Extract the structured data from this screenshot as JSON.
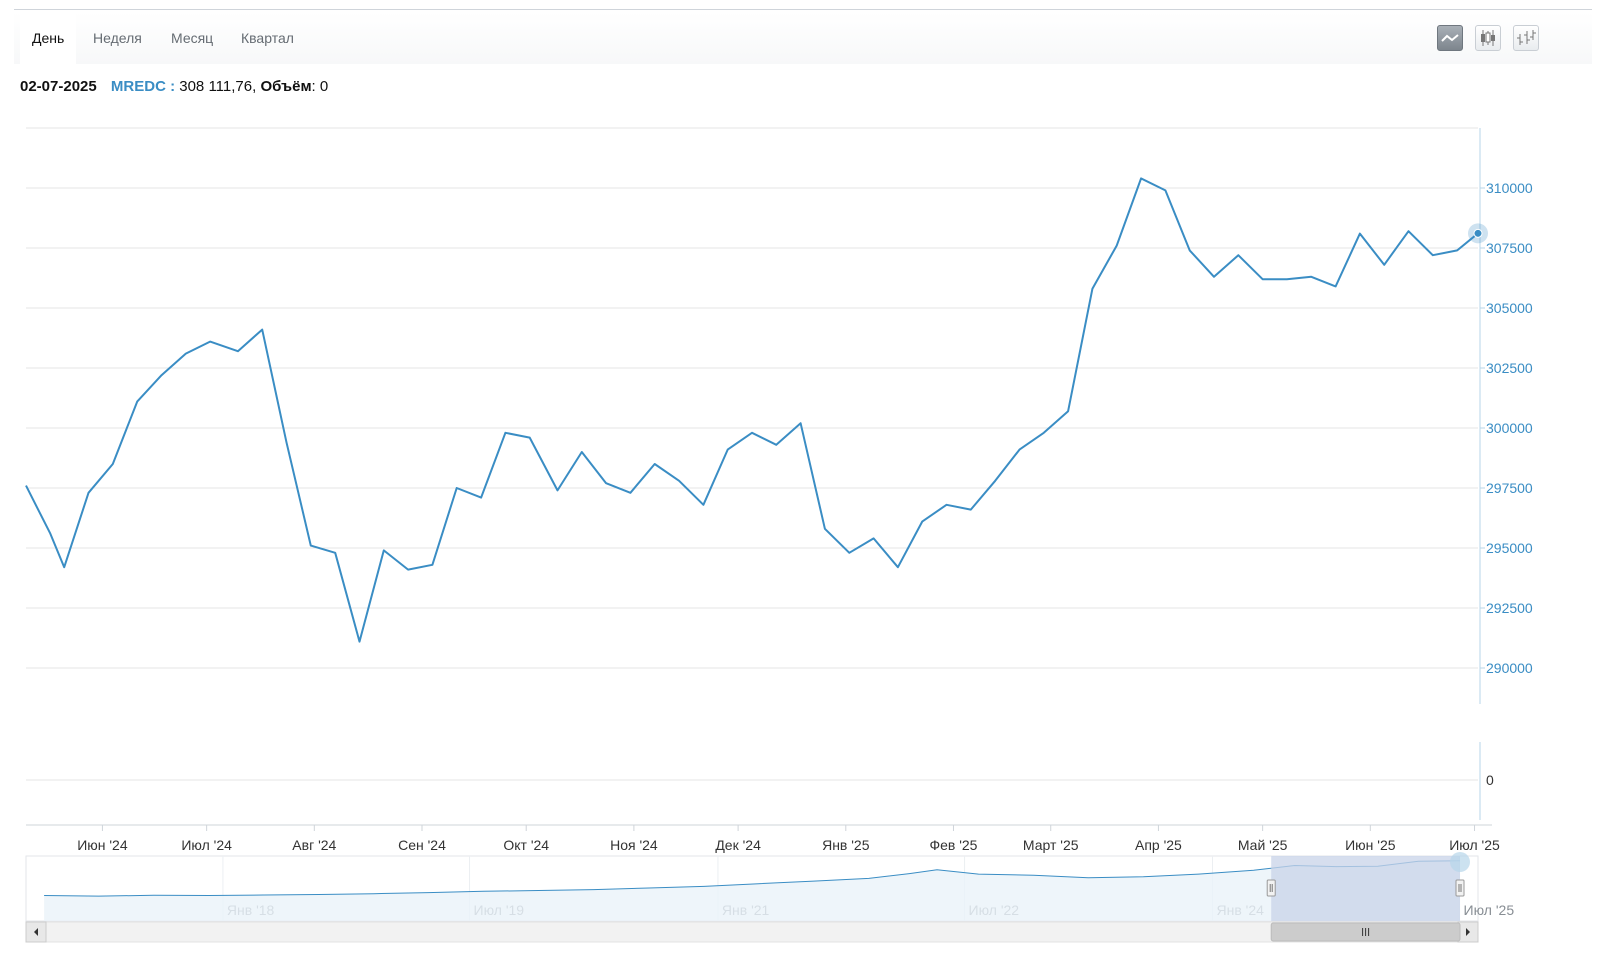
{
  "tabs": [
    {
      "label": "День",
      "active": true
    },
    {
      "label": "Неделя",
      "active": false
    },
    {
      "label": "Месяц",
      "active": false
    },
    {
      "label": "Квартал",
      "active": false
    }
  ],
  "chart_type_buttons": [
    {
      "icon": "line-chart-icon",
      "active": true
    },
    {
      "icon": "candlestick-icon",
      "active": false
    },
    {
      "icon": "ohlc-bars-icon",
      "active": false
    }
  ],
  "info": {
    "date": "02-07-2025",
    "ticker": "MREDC :",
    "value": "308 111,76,",
    "volume_label": "Объём",
    "volume_value": ": 0"
  },
  "colors": {
    "line": "#3a8dc4",
    "axis_text": "#3a8dc4",
    "navigator_selection": "#c8d3e8"
  },
  "chart_data": {
    "type": "line",
    "title": "",
    "xlabel": "",
    "ylabel": "",
    "ylim": [
      288500,
      312500
    ],
    "y_ticks": [
      290000,
      292500,
      295000,
      297500,
      300000,
      302500,
      305000,
      307500,
      310000
    ],
    "x_ticks": [
      {
        "date": "2024-06-01",
        "label": "Июн '24"
      },
      {
        "date": "2024-07-01",
        "label": "Июл '24"
      },
      {
        "date": "2024-08-01",
        "label": "Авг '24"
      },
      {
        "date": "2024-09-01",
        "label": "Сен '24"
      },
      {
        "date": "2024-10-01",
        "label": "Окт '24"
      },
      {
        "date": "2024-11-01",
        "label": "Ноя '24"
      },
      {
        "date": "2024-12-01",
        "label": "Дек '24"
      },
      {
        "date": "2025-01-01",
        "label": "Янв '25"
      },
      {
        "date": "2025-02-01",
        "label": "Фев '25"
      },
      {
        "date": "2025-03-01",
        "label": "Март '25"
      },
      {
        "date": "2025-04-01",
        "label": "Апр '25"
      },
      {
        "date": "2025-05-01",
        "label": "Май '25"
      },
      {
        "date": "2025-06-01",
        "label": "Июн '25"
      },
      {
        "date": "2025-07-01",
        "label": "Июл '25"
      }
    ],
    "series": [
      {
        "points": [
          [
            "2024-05-10",
            297600
          ],
          [
            "2024-05-17",
            295600
          ],
          [
            "2024-05-21",
            294200
          ],
          [
            "2024-05-28",
            297300
          ],
          [
            "2024-06-04",
            298500
          ],
          [
            "2024-06-11",
            301100
          ],
          [
            "2024-06-18",
            302200
          ],
          [
            "2024-06-25",
            303100
          ],
          [
            "2024-07-02",
            303600
          ],
          [
            "2024-07-10",
            303200
          ],
          [
            "2024-07-17",
            304100
          ],
          [
            "2024-07-24",
            299400
          ],
          [
            "2024-07-31",
            295100
          ],
          [
            "2024-08-07",
            294800
          ],
          [
            "2024-08-14",
            291100
          ],
          [
            "2024-08-21",
            294900
          ],
          [
            "2024-08-28",
            294100
          ],
          [
            "2024-09-04",
            294300
          ],
          [
            "2024-09-11",
            297500
          ],
          [
            "2024-09-18",
            297100
          ],
          [
            "2024-09-25",
            299800
          ],
          [
            "2024-10-02",
            299600
          ],
          [
            "2024-10-10",
            297400
          ],
          [
            "2024-10-17",
            299000
          ],
          [
            "2024-10-24",
            297700
          ],
          [
            "2024-10-31",
            297300
          ],
          [
            "2024-11-07",
            298500
          ],
          [
            "2024-11-14",
            297800
          ],
          [
            "2024-11-21",
            296800
          ],
          [
            "2024-11-28",
            299100
          ],
          [
            "2024-12-05",
            299800
          ],
          [
            "2024-12-12",
            299300
          ],
          [
            "2024-12-19",
            300200
          ],
          [
            "2024-12-26",
            295800
          ],
          [
            "2025-01-02",
            294800
          ],
          [
            "2025-01-09",
            295400
          ],
          [
            "2025-01-16",
            294200
          ],
          [
            "2025-01-23",
            296100
          ],
          [
            "2025-01-30",
            296800
          ],
          [
            "2025-02-06",
            296600
          ],
          [
            "2025-02-13",
            297800
          ],
          [
            "2025-02-20",
            299100
          ],
          [
            "2025-02-27",
            299800
          ],
          [
            "2025-03-06",
            300700
          ],
          [
            "2025-03-13",
            305800
          ],
          [
            "2025-03-20",
            307600
          ],
          [
            "2025-03-27",
            310400
          ],
          [
            "2025-04-03",
            309900
          ],
          [
            "2025-04-10",
            307400
          ],
          [
            "2025-04-17",
            306300
          ],
          [
            "2025-04-24",
            307200
          ],
          [
            "2025-05-01",
            306200
          ],
          [
            "2025-05-08",
            306200
          ],
          [
            "2025-05-15",
            306300
          ],
          [
            "2025-05-22",
            305900
          ],
          [
            "2025-05-29",
            308100
          ],
          [
            "2025-06-05",
            306800
          ],
          [
            "2025-06-12",
            308200
          ],
          [
            "2025-06-19",
            307200
          ],
          [
            "2025-06-26",
            307400
          ],
          [
            "2025-07-02",
            308111.76
          ]
        ]
      }
    ],
    "volume": {
      "y_ticks": [
        0
      ],
      "values": [
        0
      ]
    },
    "navigator": {
      "x_ticks": [
        {
          "date": "2018-01-01",
          "label": "Янв '18"
        },
        {
          "date": "2019-07-01",
          "label": "Июл '19"
        },
        {
          "date": "2021-01-01",
          "label": "Янв '21"
        },
        {
          "date": "2022-07-01",
          "label": "Июл '22"
        },
        {
          "date": "2024-01-01",
          "label": "Янв '24"
        },
        {
          "date": "2025-07-01",
          "label": "Июл '25"
        }
      ],
      "selection": [
        "2024-05-10",
        "2025-07-02"
      ],
      "points": [
        [
          "2016-12-01",
          240000
        ],
        [
          "2017-04-01",
          239000
        ],
        [
          "2017-08-01",
          240500
        ],
        [
          "2017-12-01",
          240000
        ],
        [
          "2018-04-01",
          241000
        ],
        [
          "2018-08-01",
          242000
        ],
        [
          "2018-12-01",
          243500
        ],
        [
          "2019-04-01",
          245500
        ],
        [
          "2019-08-01",
          248000
        ],
        [
          "2019-12-01",
          249500
        ],
        [
          "2020-04-01",
          251000
        ],
        [
          "2020-08-01",
          254000
        ],
        [
          "2020-12-01",
          257000
        ],
        [
          "2021-04-01",
          262000
        ],
        [
          "2021-08-01",
          267000
        ],
        [
          "2021-12-01",
          272000
        ],
        [
          "2022-03-01",
          281000
        ],
        [
          "2022-05-01",
          288000
        ],
        [
          "2022-08-01",
          280000
        ],
        [
          "2022-12-01",
          278000
        ],
        [
          "2023-04-01",
          273000
        ],
        [
          "2023-08-01",
          275000
        ],
        [
          "2023-12-01",
          280000
        ],
        [
          "2024-04-01",
          287000
        ],
        [
          "2024-07-01",
          296000
        ],
        [
          "2024-10-01",
          294000
        ],
        [
          "2025-01-01",
          294500
        ],
        [
          "2025-04-01",
          304000
        ],
        [
          "2025-07-02",
          305000
        ]
      ]
    }
  }
}
